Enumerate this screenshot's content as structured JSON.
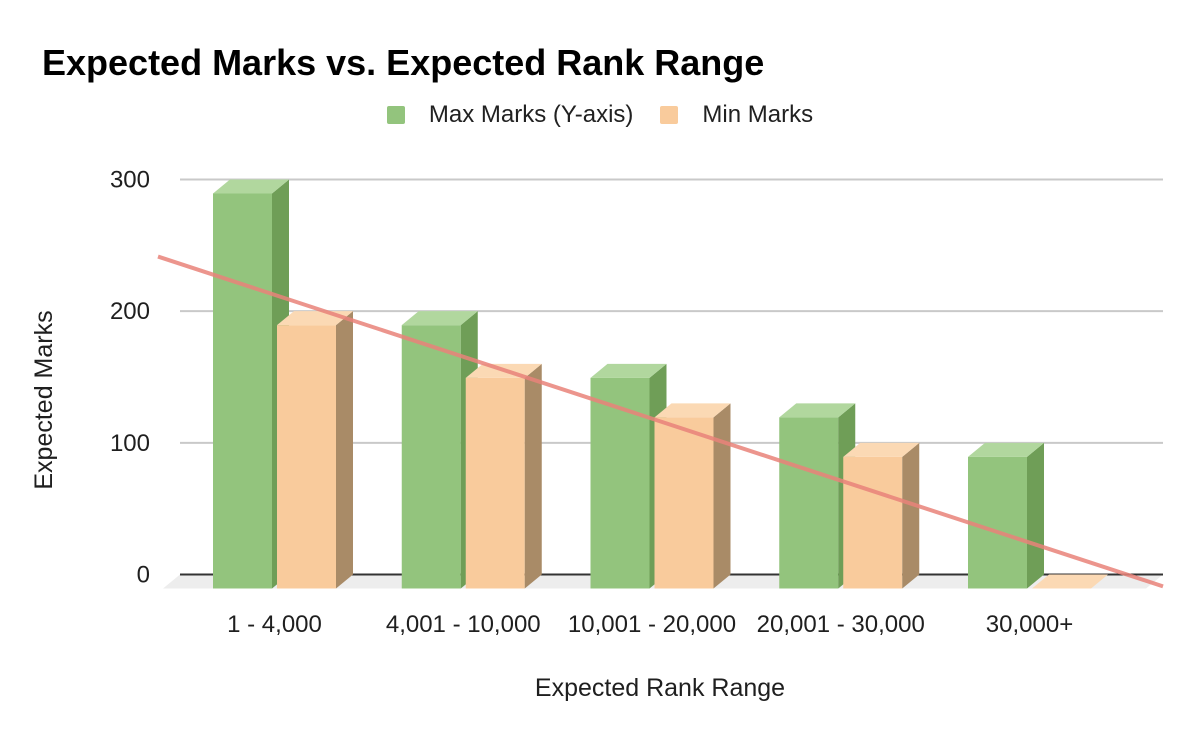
{
  "title": "Expected Marks vs. Expected Rank Range",
  "chart_data": {
    "type": "bar",
    "style": "3d-column",
    "title": "Expected Marks vs. Expected Rank Range",
    "xlabel": "Expected Rank Range",
    "ylabel": "Expected Marks",
    "categories": [
      "1 - 4,000",
      "4,001 - 10,000",
      "10,001 - 20,000",
      "20,001 - 30,000",
      "30,000+"
    ],
    "series": [
      {
        "name": "Max Marks (Y-axis)",
        "color": "#93c47d",
        "color_top": "#b1d79e",
        "color_side": "#6f9e57",
        "values": [
          300,
          200,
          160,
          130,
          100
        ]
      },
      {
        "name": "Min Marks",
        "color": "#f9cb9c",
        "color_top": "#fbd9b4",
        "color_side": "#a98b67",
        "values": [
          200,
          160,
          130,
          100,
          0
        ]
      }
    ],
    "trendline": {
      "series": "Min Marks",
      "color": "#e9837a",
      "left_edge_value": 236,
      "right_edge_value": -9
    },
    "yticks": [
      0,
      100,
      200,
      300
    ],
    "ylim": [
      0,
      300
    ],
    "grid": true,
    "legend_position": "top"
  },
  "colors": {
    "background": "#ffffff",
    "grid": "#c9c9c9",
    "zero_line": "#333333",
    "floor": "#ededed",
    "text": "#1f1f1f"
  }
}
